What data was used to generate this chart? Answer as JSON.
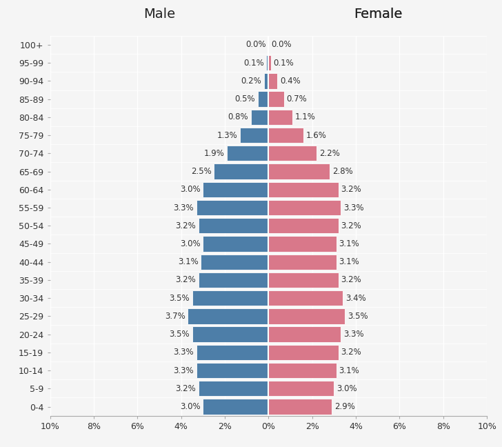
{
  "age_groups": [
    "0-4",
    "5-9",
    "10-14",
    "15-19",
    "20-24",
    "25-29",
    "30-34",
    "35-39",
    "40-44",
    "45-49",
    "50-54",
    "55-59",
    "60-64",
    "65-69",
    "70-74",
    "75-79",
    "80-84",
    "85-89",
    "90-94",
    "95-99",
    "100+"
  ],
  "male": [
    3.0,
    3.2,
    3.3,
    3.3,
    3.5,
    3.7,
    3.5,
    3.2,
    3.1,
    3.0,
    3.2,
    3.3,
    3.0,
    2.5,
    1.9,
    1.3,
    0.8,
    0.5,
    0.2,
    0.1,
    0.0
  ],
  "female": [
    2.9,
    3.0,
    3.1,
    3.2,
    3.3,
    3.5,
    3.4,
    3.2,
    3.1,
    3.1,
    3.2,
    3.3,
    3.2,
    2.8,
    2.2,
    1.6,
    1.1,
    0.7,
    0.4,
    0.1,
    0.0
  ],
  "male_color": "#4d7ea8",
  "female_color": "#d9788a",
  "background_color": "#f5f5f5",
  "bar_edge_color": "white",
  "title_male": "Male",
  "title_female": "Female",
  "xlim": 10,
  "bar_height": 0.85,
  "tick_positions": [
    -10,
    -8,
    -6,
    -4,
    -2,
    0,
    2,
    4,
    6,
    8,
    10
  ],
  "tick_labels": [
    "10%",
    "8%",
    "6%",
    "4%",
    "2%",
    "0%",
    "2%",
    "4%",
    "6%",
    "8%",
    "10%"
  ],
  "label_fontsize": 8.5,
  "tick_fontsize": 9,
  "title_fontsize": 14,
  "ytick_fontsize": 9
}
